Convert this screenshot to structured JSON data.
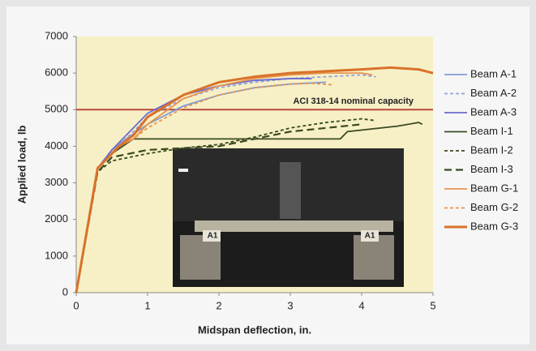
{
  "chart_data": {
    "type": "line",
    "xlabel": "Midspan deflection, in.",
    "ylabel": "Applied load, lb",
    "xlim": [
      0,
      5
    ],
    "xticks": [
      0,
      1,
      2,
      3,
      4,
      5
    ],
    "ylim": [
      0,
      7000
    ],
    "yticks": [
      0,
      1000,
      2000,
      3000,
      4000,
      5000,
      6000,
      7000
    ],
    "legend": "right",
    "reference_line": {
      "value": 5000,
      "label": "ACI 318-14 nominal capacity",
      "color": "#b8483a"
    },
    "photo_labels": [
      "A1",
      "A1"
    ],
    "series": [
      {
        "name": "Beam A-1",
        "color": "#7f9ad8",
        "dash": "solid",
        "x": [
          0,
          0.3,
          0.5,
          0.7,
          1,
          1.5,
          2,
          2.5,
          3,
          3.5
        ],
        "values": [
          0,
          3400,
          3900,
          4200,
          4600,
          5100,
          5400,
          5600,
          5700,
          5750
        ]
      },
      {
        "name": "Beam A-2",
        "color": "#8fa4dc",
        "dash": "dashed",
        "x": [
          0,
          0.3,
          0.5,
          0.75,
          1,
          1.5,
          2,
          2.5,
          3,
          3.5,
          4,
          4.2
        ],
        "values": [
          0,
          3400,
          3900,
          4300,
          4800,
          5300,
          5600,
          5750,
          5850,
          5900,
          5950,
          5900
        ]
      },
      {
        "name": "Beam A-3",
        "color": "#6a6ad0",
        "dash": "solid",
        "x": [
          0,
          0.3,
          0.5,
          0.7,
          1,
          1.5,
          2,
          2.5,
          3,
          3.3
        ],
        "values": [
          0,
          3400,
          3900,
          4300,
          4900,
          5400,
          5650,
          5800,
          5850,
          5850
        ]
      },
      {
        "name": "Beam I-1",
        "color": "#3b4a22",
        "dash": "solid",
        "x": [
          0,
          0.3,
          0.5,
          0.8,
          1,
          2,
          3,
          3.7,
          3.8,
          4.5,
          4.8,
          4.85
        ],
        "values": [
          0,
          3400,
          3800,
          4200,
          4200,
          4200,
          4200,
          4200,
          4400,
          4550,
          4650,
          4600
        ]
      },
      {
        "name": "Beam I-2",
        "color": "#3b4a22",
        "dash": "dashed",
        "x": [
          0,
          0.3,
          0.5,
          1,
          1.5,
          2,
          2.5,
          3,
          3.5,
          4,
          4.2
        ],
        "values": [
          0,
          3300,
          3600,
          3800,
          3950,
          4050,
          4250,
          4500,
          4650,
          4750,
          4700
        ]
      },
      {
        "name": "Beam I-3",
        "color": "#3b4a22",
        "dash": "longdash",
        "x": [
          0,
          0.3,
          0.5,
          1,
          2,
          2.5,
          3,
          3.5,
          4
        ],
        "values": [
          0,
          3300,
          3700,
          3900,
          4000,
          4200,
          4400,
          4500,
          4600
        ]
      },
      {
        "name": "Beam G-1",
        "color": "#e89450",
        "dash": "solid",
        "x": [
          0,
          0.3,
          0.6,
          0.8,
          1,
          1.5,
          2,
          2.5,
          3,
          3.5,
          4,
          4.15
        ],
        "values": [
          0,
          3400,
          4000,
          4200,
          4600,
          5300,
          5650,
          5850,
          5950,
          6000,
          6000,
          5950
        ]
      },
      {
        "name": "Beam G-2",
        "color": "#e89450",
        "dash": "dashed",
        "x": [
          0,
          0.3,
          0.6,
          0.8,
          1,
          1.5,
          2,
          2.5,
          3,
          3.3,
          3.6
        ],
        "values": [
          0,
          3400,
          4000,
          4200,
          4500,
          5050,
          5400,
          5600,
          5700,
          5720,
          5680
        ]
      },
      {
        "name": "Beam G-3",
        "color": "#d8722a",
        "dash": "thick",
        "x": [
          0,
          0.3,
          0.6,
          0.8,
          1,
          1.5,
          2,
          2.5,
          3,
          3.5,
          4,
          4.4,
          4.8,
          5
        ],
        "values": [
          0,
          3400,
          4000,
          4300,
          4800,
          5400,
          5750,
          5900,
          6000,
          6050,
          6100,
          6150,
          6100,
          6000
        ]
      }
    ]
  }
}
